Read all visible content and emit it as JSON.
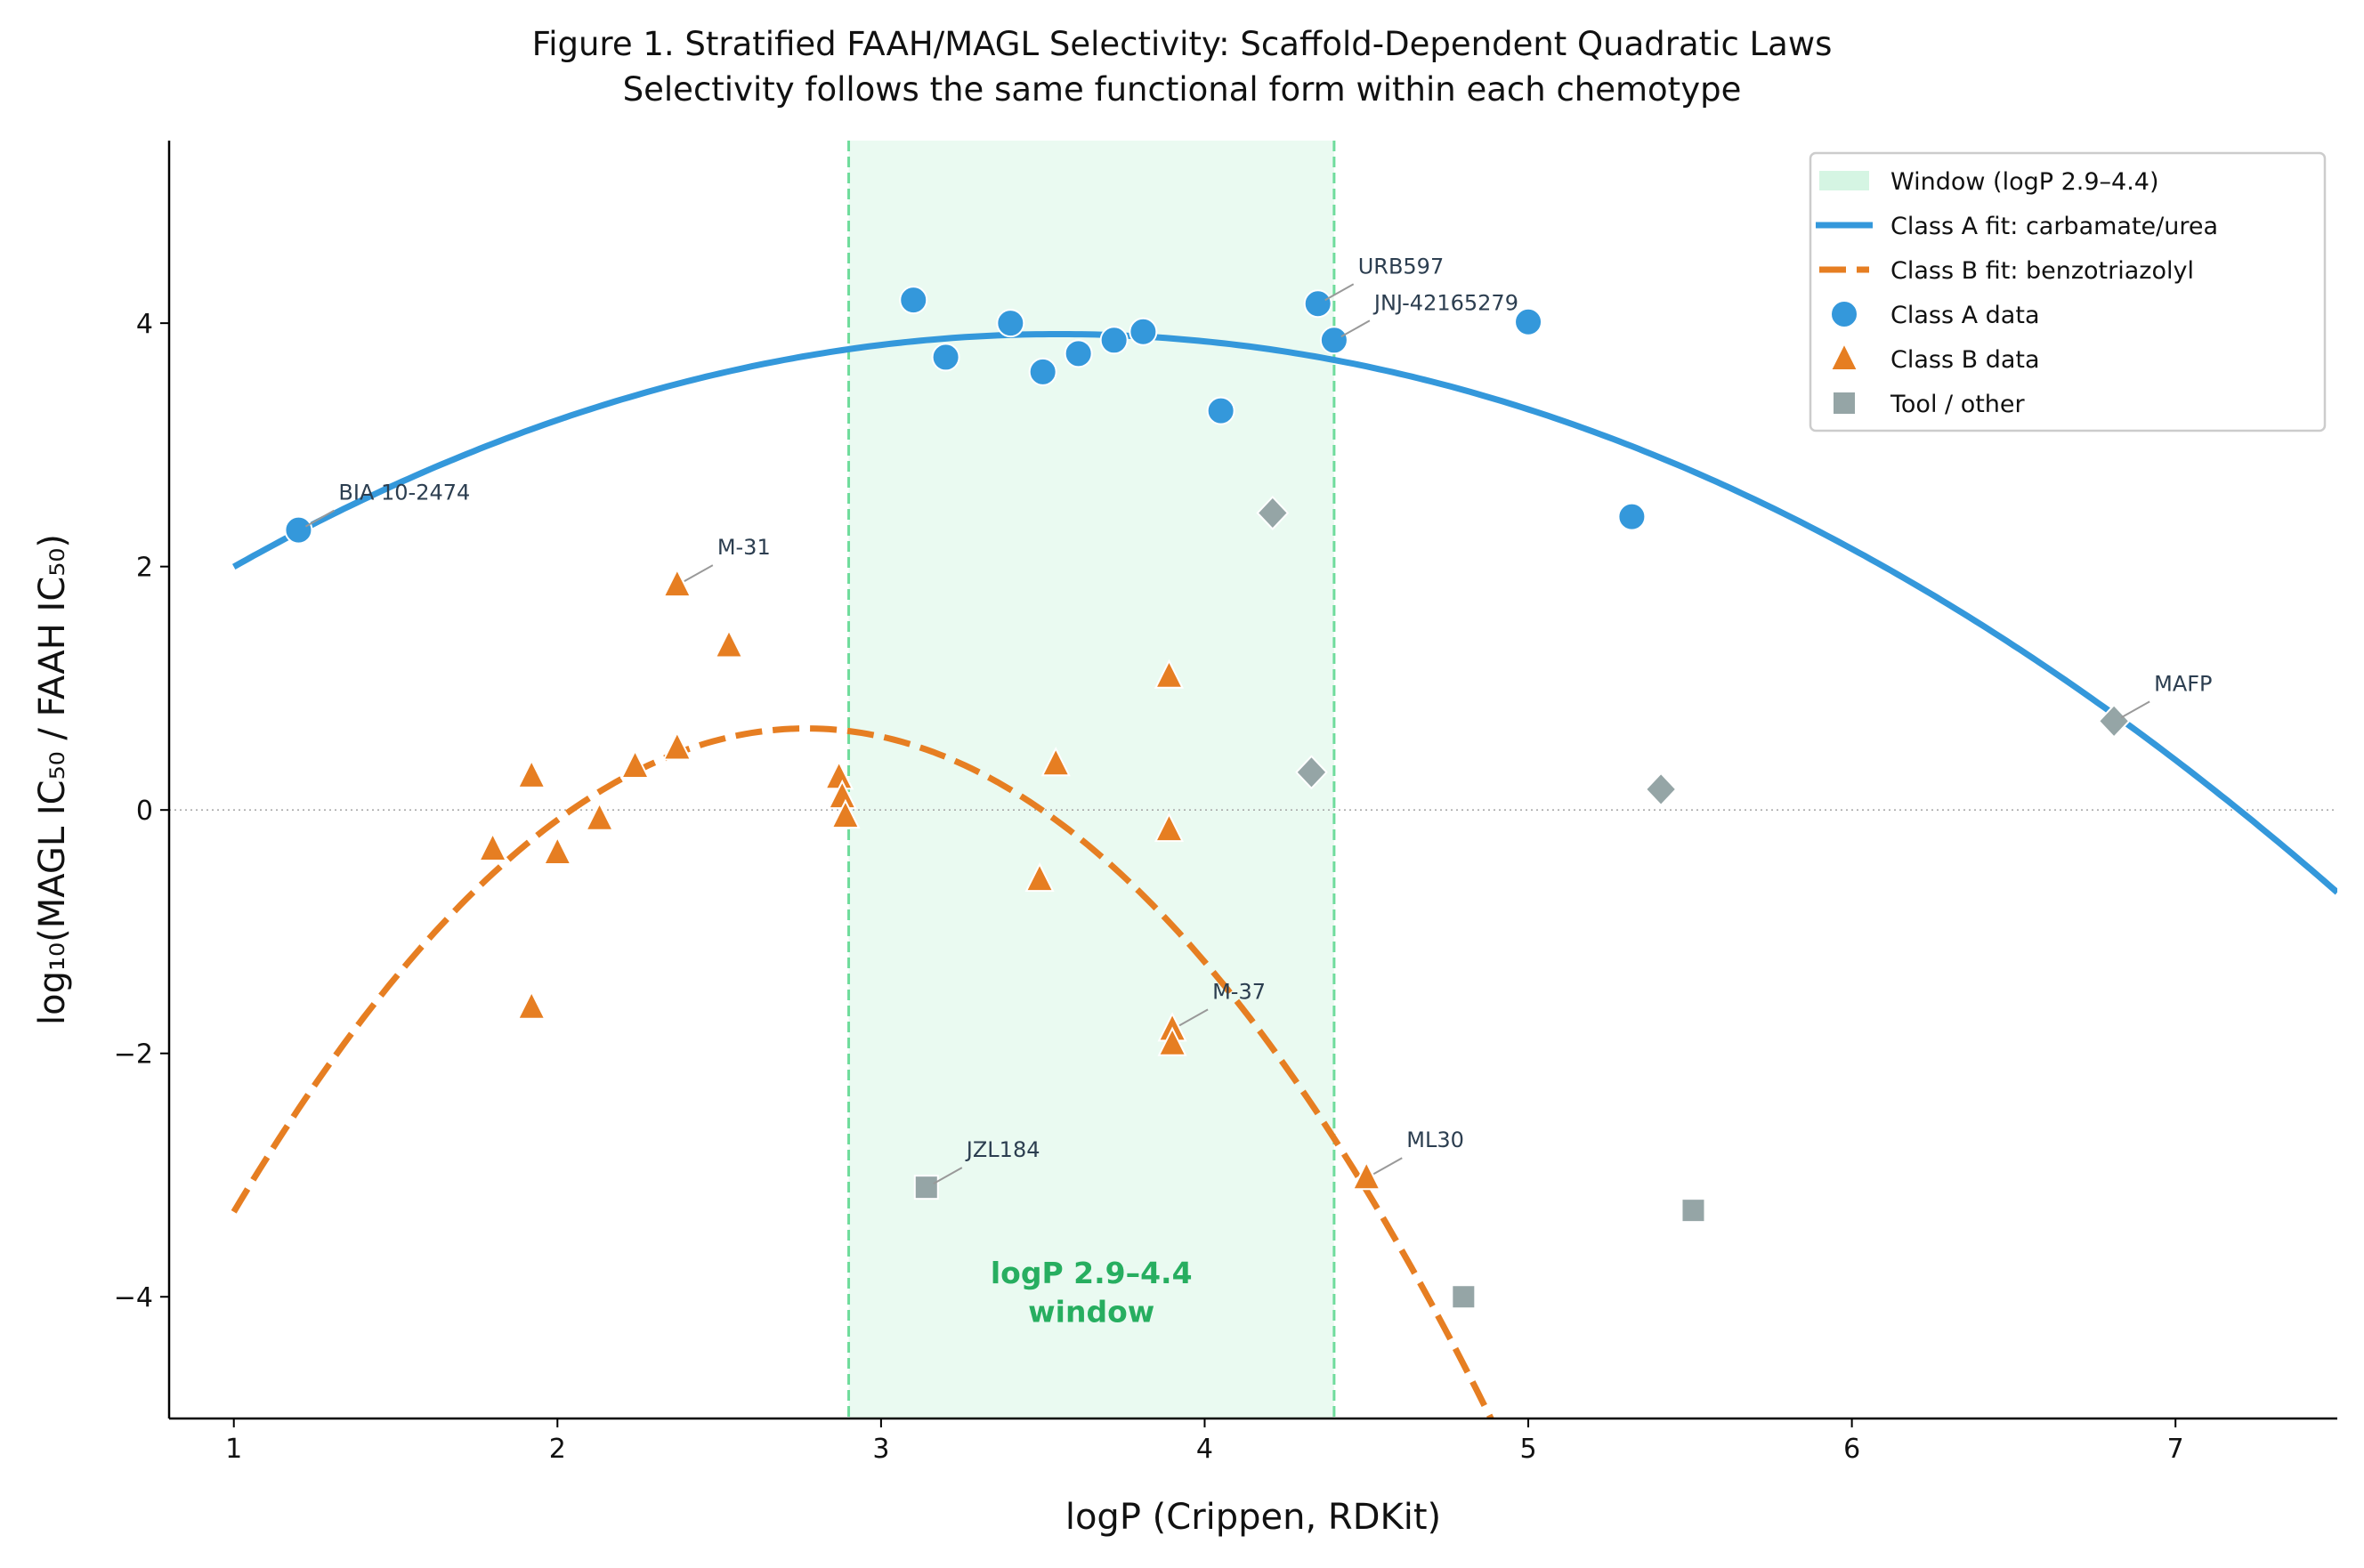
{
  "chart_data": {
    "type": "scatter",
    "title": "Figure 1. Stratified FAAH/MAGL Selectivity: Scaffold-Dependent Quadratic Laws",
    "subtitle": "Selectivity follows the same functional form within each chemotype",
    "xlabel": "logP (Crippen, RDKit)",
    "ylabel": "log₁₀(MAGL IC₅₀ / FAAH IC₅₀)",
    "xlim": [
      0.8,
      7.5
    ],
    "ylim": [
      -5,
      5.5
    ],
    "xticks": [
      1,
      2,
      3,
      4,
      5,
      6,
      7
    ],
    "yticks": [
      -4,
      -2,
      0,
      2,
      4
    ],
    "ytick_labels": [
      "−4",
      "−2",
      "0",
      "2",
      "4"
    ],
    "grid": false,
    "legend_position": "top-right",
    "window": {
      "range": [
        2.9,
        4.4
      ],
      "label": "Window (logP 2.9–4.4)",
      "annotation_line1": "logP 2.9–4.4",
      "annotation_line2": "window",
      "color": "#27ae60"
    },
    "fits": [
      {
        "name": "Class A fit: carbamate/urea",
        "form": "quadratic",
        "vertex_x": 3.55,
        "vertex_y": 3.91,
        "a": -0.294,
        "x_range": [
          1,
          7.5
        ],
        "color": "#3498db",
        "style": "solid"
      },
      {
        "name": "Class B fit: benzotriazolyl",
        "form": "quadratic",
        "vertex_x": 2.77,
        "vertex_y": 0.67,
        "a": -1.268,
        "x_range": [
          1,
          4.93
        ],
        "color": "#e67e22",
        "style": "dashed"
      }
    ],
    "series": [
      {
        "name": "Class A data",
        "marker": "circle",
        "color": "#3498db",
        "points": [
          {
            "x": 1.2,
            "y": 2.3,
            "label": "BIA 10-2474"
          },
          {
            "x": 3.1,
            "y": 4.19
          },
          {
            "x": 3.2,
            "y": 3.72
          },
          {
            "x": 3.4,
            "y": 4.0
          },
          {
            "x": 3.5,
            "y": 3.6
          },
          {
            "x": 3.61,
            "y": 3.75
          },
          {
            "x": 3.72,
            "y": 3.86
          },
          {
            "x": 3.81,
            "y": 3.93
          },
          {
            "x": 4.05,
            "y": 3.28
          },
          {
            "x": 4.35,
            "y": 4.16,
            "label": "URB597"
          },
          {
            "x": 4.4,
            "y": 3.86,
            "label": "JNJ-42165279"
          },
          {
            "x": 5.0,
            "y": 4.01
          },
          {
            "x": 5.32,
            "y": 2.41
          }
        ]
      },
      {
        "name": "Class B data",
        "marker": "triangle",
        "color": "#e67e22",
        "points": [
          {
            "x": 2.37,
            "y": 1.85,
            "label": "M-31"
          },
          {
            "x": 2.53,
            "y": 1.35
          },
          {
            "x": 1.8,
            "y": -0.32
          },
          {
            "x": 1.92,
            "y": 0.28
          },
          {
            "x": 2.0,
            "y": -0.35
          },
          {
            "x": 2.13,
            "y": -0.07
          },
          {
            "x": 2.24,
            "y": 0.36
          },
          {
            "x": 2.37,
            "y": 0.51
          },
          {
            "x": 1.92,
            "y": -1.62
          },
          {
            "x": 2.87,
            "y": 0.27
          },
          {
            "x": 2.88,
            "y": 0.11
          },
          {
            "x": 2.89,
            "y": -0.05
          },
          {
            "x": 3.54,
            "y": 0.38
          },
          {
            "x": 3.49,
            "y": -0.57
          },
          {
            "x": 3.89,
            "y": 1.1
          },
          {
            "x": 3.89,
            "y": -0.16
          },
          {
            "x": 3.9,
            "y": -1.8,
            "label": "M-37"
          },
          {
            "x": 3.9,
            "y": -1.92
          },
          {
            "x": 4.5,
            "y": -3.02,
            "label": "ML30"
          }
        ]
      },
      {
        "name": "Tool / other",
        "marker": "square",
        "color": "#95a5a6",
        "points": [
          {
            "x": 3.14,
            "y": -3.1,
            "label": "JZL184"
          },
          {
            "x": 5.51,
            "y": -3.29
          },
          {
            "x": 4.8,
            "y": -4.0
          },
          {
            "x": 4.21,
            "y": 2.44,
            "marker": "diamond"
          },
          {
            "x": 4.33,
            "y": 0.31,
            "marker": "diamond"
          },
          {
            "x": 5.41,
            "y": 0.17,
            "marker": "diamond"
          },
          {
            "x": 6.81,
            "y": 0.73,
            "marker": "diamond",
            "label": "MAFP"
          }
        ]
      }
    ]
  }
}
